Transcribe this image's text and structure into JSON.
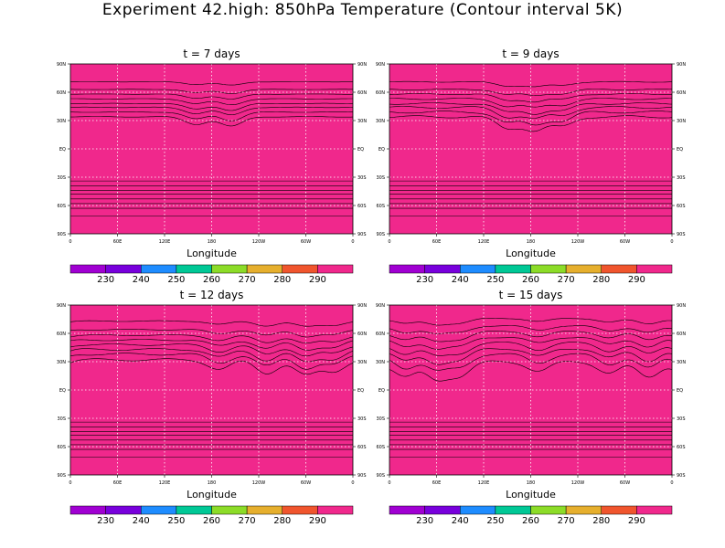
{
  "page_title": "Experiment 42.high: 850hPa Temperature (Contour interval 5K)",
  "colors": {
    "levels": [
      "#a000d2",
      "#7800dc",
      "#1e8cff",
      "#00c896",
      "#8cdc28",
      "#e6af2d",
      "#f0552d",
      "#f0288c"
    ],
    "contour": "#000000",
    "grid": "#ffffff"
  },
  "chart_data": [
    {
      "type": "heatmap",
      "title": "t = 7 days",
      "xlabel": "Longitude",
      "x_ticks": [
        "0",
        "60E",
        "120E",
        "180",
        "120W",
        "60W",
        "0"
      ],
      "y_ticks": [
        "90N",
        "60N",
        "30N",
        "EQ",
        "30S",
        "60S",
        "90S"
      ],
      "y_ticks_right": [
        "90N",
        "60N",
        "30N",
        "EQ",
        "30S",
        "60S",
        "90S"
      ],
      "xlim": [
        0,
        360
      ],
      "ylim": [
        -90,
        90
      ],
      "grid": true,
      "colorbar": {
        "labels": [
          "230",
          "240",
          "250",
          "260",
          "270",
          "280",
          "290"
        ],
        "placement": "bottom"
      },
      "band_lat": {
        "north": [
          71,
          63,
          58,
          53,
          48,
          44,
          39,
          34
        ],
        "south": [
          -71,
          -63,
          -58,
          -53,
          -48,
          -44,
          -39,
          -34
        ]
      },
      "waves": [
        {
          "lon": 160,
          "amp": 8
        },
        {
          "lon": 205,
          "amp": 10
        }
      ]
    },
    {
      "type": "heatmap",
      "title": "t = 9 days",
      "xlabel": "Longitude",
      "x_ticks": [
        "0",
        "60E",
        "120E",
        "180",
        "120W",
        "60W",
        "0"
      ],
      "y_ticks": [
        "90N",
        "60N",
        "30N",
        "EQ",
        "30S",
        "60S",
        "90S"
      ],
      "y_ticks_right": [
        "90N",
        "60N",
        "30N",
        "EQ",
        "30S",
        "60S",
        "90S"
      ],
      "xlim": [
        0,
        360
      ],
      "ylim": [
        -90,
        90
      ],
      "grid": true,
      "colorbar": {
        "labels": [
          "230",
          "240",
          "250",
          "260",
          "270",
          "280",
          "290"
        ],
        "placement": "bottom"
      },
      "band_lat": {
        "north": [
          71,
          63,
          58,
          53,
          48,
          44,
          39,
          34
        ],
        "south": [
          -71,
          -63,
          -58,
          -53,
          -48,
          -44,
          -39,
          -34
        ]
      },
      "waves": [
        {
          "lon": 150,
          "amp": 12
        },
        {
          "lon": 185,
          "amp": 14
        },
        {
          "lon": 220,
          "amp": 10
        }
      ]
    },
    {
      "type": "heatmap",
      "title": "t = 12 days",
      "xlabel": "Longitude",
      "x_ticks": [
        "0",
        "60E",
        "120E",
        "180",
        "120W",
        "60W",
        "0"
      ],
      "y_ticks": [
        "90N",
        "60N",
        "30N",
        "EQ",
        "30S",
        "60S",
        "90S"
      ],
      "y_ticks_right": [
        "90N",
        "60N",
        "30N",
        "EQ",
        "30S",
        "60S",
        "90S"
      ],
      "xlim": [
        0,
        360
      ],
      "ylim": [
        -90,
        90
      ],
      "grid": true,
      "colorbar": {
        "labels": [
          "230",
          "240",
          "250",
          "260",
          "270",
          "280",
          "290"
        ],
        "placement": "bottom"
      },
      "band_lat": {
        "north": [
          73,
          64,
          58,
          53,
          48,
          43,
          38,
          32
        ],
        "south": [
          -71,
          -63,
          -58,
          -53,
          -48,
          -44,
          -39,
          -34
        ]
      },
      "waves": [
        {
          "lon": 190,
          "amp": 10
        },
        {
          "lon": 250,
          "amp": 14
        },
        {
          "lon": 300,
          "amp": 16
        },
        {
          "lon": 335,
          "amp": 12
        }
      ]
    },
    {
      "type": "heatmap",
      "title": "t = 15 days",
      "xlabel": "Longitude",
      "x_ticks": [
        "0",
        "60E",
        "120E",
        "180",
        "120W",
        "60W",
        "0"
      ],
      "y_ticks": [
        "90N",
        "60N",
        "30N",
        "EQ",
        "30S",
        "60S",
        "90S"
      ],
      "y_ticks_right": [
        "90N",
        "60N",
        "30N",
        "EQ",
        "30S",
        "60S",
        "90S"
      ],
      "xlim": [
        0,
        360
      ],
      "ylim": [
        -90,
        90
      ],
      "grid": true,
      "colorbar": {
        "labels": [
          "230",
          "240",
          "250",
          "260",
          "270",
          "280",
          "290"
        ],
        "placement": "bottom"
      },
      "band_lat": {
        "north": [
          76,
          68,
          62,
          56,
          50,
          44,
          38,
          30
        ],
        "south": [
          -71,
          -63,
          -58,
          -53,
          -48,
          -44,
          -39,
          -34
        ]
      },
      "waves": [
        {
          "lon": 20,
          "amp": 16
        },
        {
          "lon": 60,
          "amp": 18
        },
        {
          "lon": 90,
          "amp": 14
        },
        {
          "lon": 190,
          "amp": 10
        },
        {
          "lon": 280,
          "amp": 12
        },
        {
          "lon": 330,
          "amp": 16
        }
      ]
    }
  ]
}
